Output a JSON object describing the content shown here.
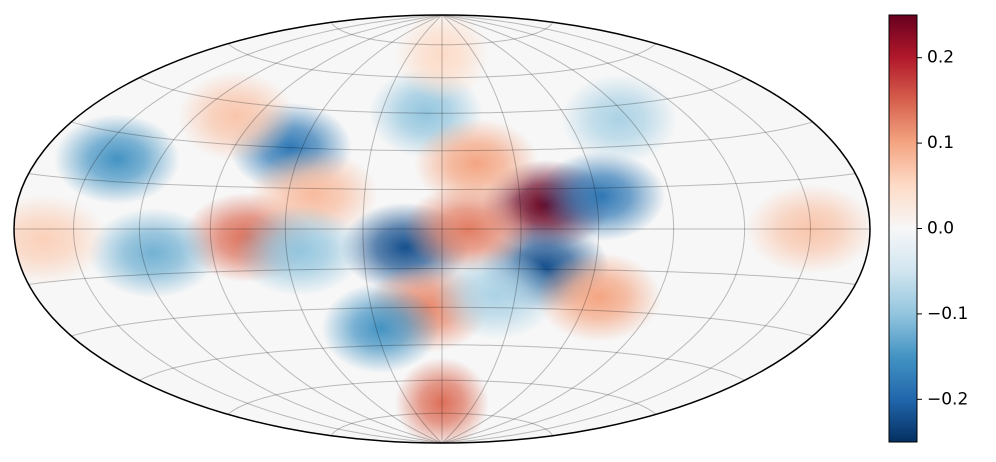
{
  "chart_data": {
    "type": "hammer-map",
    "spots": {
      "x": [
        40,
        -14,
        40,
        -65,
        -140,
        62,
        -8,
        -75,
        10,
        14,
        -6,
        -28,
        0,
        -115,
        -50,
        150,
        -165,
        0,
        22,
        65,
        85,
        -100,
        -55
      ],
      "y": [
        9,
        -7,
        -14,
        30,
        22,
        12,
        45,
        -3,
        0,
        25,
        -30,
        -38,
        -70,
        -8,
        13,
        0,
        -3,
        70,
        -25,
        -25,
        40,
        40,
        -8
      ],
      "values": [
        0.25,
        -0.22,
        -0.22,
        -0.18,
        -0.15,
        -0.18,
        -0.1,
        0.14,
        0.13,
        0.1,
        0.12,
        -0.15,
        0.14,
        -0.12,
        0.08,
        0.07,
        0.06,
        0.05,
        -0.08,
        0.1,
        -0.08,
        0.07,
        -0.1
      ]
    },
    "xticks": [
      -150,
      -120,
      -90,
      -60,
      -30,
      0,
      30,
      60,
      90,
      120,
      150
    ],
    "yticks": [
      -75,
      -60,
      -45,
      -30,
      -15,
      0,
      15,
      30,
      45,
      60,
      75
    ],
    "grid": true,
    "colormap": "RdBu_r",
    "clim": [
      -0.25,
      0.25
    ],
    "colorbar_ticks": [
      {
        "value": -0.2,
        "label": "−0.2"
      },
      {
        "value": -0.1,
        "label": "−0.1"
      },
      {
        "value": 0,
        "label": "0.0"
      },
      0.1,
      0.2
    ]
  }
}
